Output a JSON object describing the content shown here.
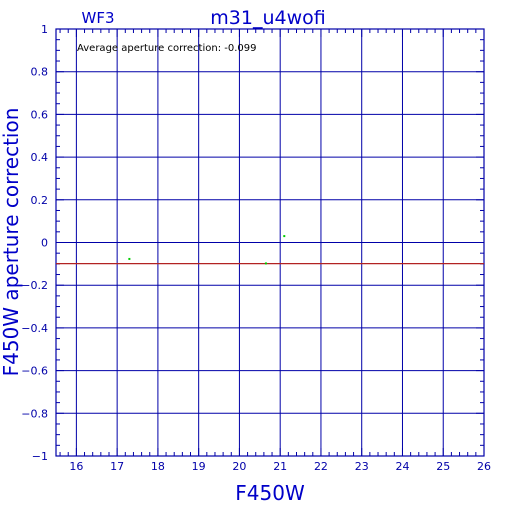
{
  "chart_data": {
    "type": "scatter",
    "title": "m31_u4wofi",
    "corner_label": "WF3",
    "xlabel": "F450W",
    "ylabel": "F450W aperture correction",
    "annotation": "Average aperture correction: -0.099",
    "xlim": [
      15.5,
      26
    ],
    "ylim": [
      -1,
      1
    ],
    "x_ticks": [
      16,
      17,
      18,
      19,
      20,
      21,
      22,
      23,
      24,
      25,
      26
    ],
    "x_tick_labels": [
      "16",
      "17",
      "18",
      "19",
      "20",
      "21",
      "22",
      "23",
      "24",
      "25",
      "26"
    ],
    "y_ticks": [
      -1,
      -0.8,
      -0.6,
      -0.4,
      -0.2,
      0,
      0.2,
      0.4,
      0.6,
      0.8,
      1
    ],
    "y_tick_labels": [
      "−1",
      "−0.8",
      "−0.6",
      "−0.4",
      "−0.2",
      "0",
      "0.2",
      "0.4",
      "0.6",
      "0.8",
      "1"
    ],
    "grid": true,
    "reference_line": {
      "y": -0.099,
      "color": "#b22222"
    },
    "series": [
      {
        "color": "#00cc00",
        "points": [
          {
            "x": 17.3,
            "y": -0.077
          },
          {
            "x": 20.65,
            "y": -0.098
          },
          {
            "x": 21.1,
            "y": 0.03
          }
        ]
      }
    ],
    "colors": {
      "frame": "#0000a8",
      "text": "#0000c8"
    }
  }
}
